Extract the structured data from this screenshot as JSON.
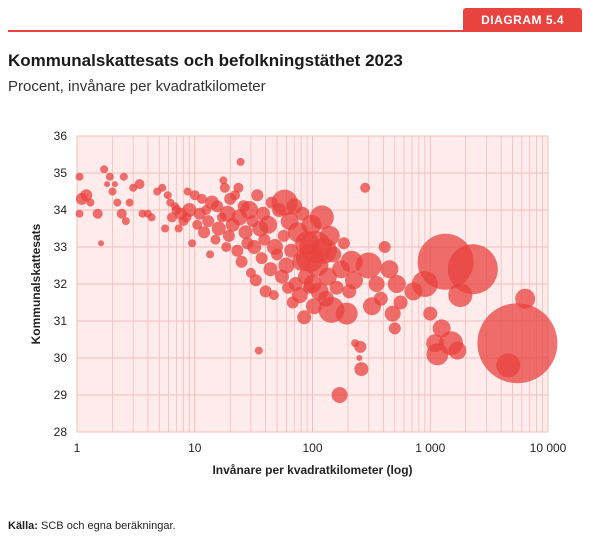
{
  "header": {
    "badge": "DIAGRAM 5.4"
  },
  "title": "Kommunalskattesats och befolkningstäthet 2023",
  "subtitle": "Procent, invånare per kvadratkilometer",
  "source": {
    "label": "Källa:",
    "text": "SCB och egna beräkningar."
  },
  "colors": {
    "accent": "#e8433f",
    "bubble": "#e8433f",
    "plot_bg": "#fdeceb",
    "grid": "#f4bcb9"
  },
  "chart_data": {
    "type": "scatter",
    "xlabel": "Invånare per kvadratkilometer (log)",
    "ylabel": "Kommunalskattesats",
    "x_scale": "log",
    "xlim": [
      1,
      10000
    ],
    "ylim": [
      28,
      36
    ],
    "x_ticks": [
      1,
      10,
      100,
      1000,
      10000
    ],
    "x_tick_labels": [
      "1",
      "10",
      "100",
      "1 000",
      "10 000"
    ],
    "y_ticks": [
      28,
      29,
      30,
      31,
      32,
      33,
      34,
      35,
      36
    ],
    "y_tick_labels": [
      "28",
      "29",
      "30",
      "31",
      "32",
      "33",
      "34",
      "35",
      "36"
    ],
    "grid": true,
    "points": [
      {
        "x": 1.05,
        "y": 34.9,
        "s": 4
      },
      {
        "x": 1.1,
        "y": 34.3,
        "s": 6
      },
      {
        "x": 1.2,
        "y": 34.4,
        "s": 6
      },
      {
        "x": 1.05,
        "y": 33.9,
        "s": 4
      },
      {
        "x": 1.3,
        "y": 34.2,
        "s": 4
      },
      {
        "x": 1.5,
        "y": 33.9,
        "s": 5
      },
      {
        "x": 1.6,
        "y": 33.1,
        "s": 3
      },
      {
        "x": 1.7,
        "y": 35.1,
        "s": 4
      },
      {
        "x": 1.8,
        "y": 34.7,
        "s": 3
      },
      {
        "x": 1.9,
        "y": 34.9,
        "s": 4
      },
      {
        "x": 2.0,
        "y": 34.5,
        "s": 4
      },
      {
        "x": 2.1,
        "y": 34.7,
        "s": 3
      },
      {
        "x": 2.2,
        "y": 34.2,
        "s": 4
      },
      {
        "x": 2.4,
        "y": 33.9,
        "s": 5
      },
      {
        "x": 2.5,
        "y": 34.9,
        "s": 4
      },
      {
        "x": 2.6,
        "y": 33.7,
        "s": 4
      },
      {
        "x": 2.8,
        "y": 34.2,
        "s": 4
      },
      {
        "x": 3.0,
        "y": 34.6,
        "s": 4
      },
      {
        "x": 3.4,
        "y": 34.7,
        "s": 5
      },
      {
        "x": 3.6,
        "y": 33.9,
        "s": 4
      },
      {
        "x": 4.0,
        "y": 33.9,
        "s": 4
      },
      {
        "x": 4.3,
        "y": 33.8,
        "s": 4
      },
      {
        "x": 4.8,
        "y": 34.5,
        "s": 4
      },
      {
        "x": 5.3,
        "y": 34.6,
        "s": 4
      },
      {
        "x": 5.6,
        "y": 33.5,
        "s": 4
      },
      {
        "x": 5.9,
        "y": 34.4,
        "s": 4
      },
      {
        "x": 6.2,
        "y": 34.2,
        "s": 4
      },
      {
        "x": 6.4,
        "y": 33.8,
        "s": 5
      },
      {
        "x": 6.8,
        "y": 34.1,
        "s": 4
      },
      {
        "x": 7.0,
        "y": 34.0,
        "s": 5
      },
      {
        "x": 7.3,
        "y": 33.5,
        "s": 4
      },
      {
        "x": 7.6,
        "y": 33.9,
        "s": 6
      },
      {
        "x": 8.0,
        "y": 33.7,
        "s": 5
      },
      {
        "x": 8.5,
        "y": 33.8,
        "s": 5
      },
      {
        "x": 8.7,
        "y": 34.5,
        "s": 4
      },
      {
        "x": 9.0,
        "y": 34.0,
        "s": 7
      },
      {
        "x": 9.5,
        "y": 33.1,
        "s": 4
      },
      {
        "x": 10.0,
        "y": 34.4,
        "s": 5
      },
      {
        "x": 10.5,
        "y": 33.6,
        "s": 5
      },
      {
        "x": 11.0,
        "y": 33.9,
        "s": 6
      },
      {
        "x": 11.5,
        "y": 34.3,
        "s": 5
      },
      {
        "x": 12.0,
        "y": 33.4,
        "s": 6
      },
      {
        "x": 12.5,
        "y": 34.0,
        "s": 5
      },
      {
        "x": 13.0,
        "y": 33.7,
        "s": 6
      },
      {
        "x": 13.5,
        "y": 32.8,
        "s": 4
      },
      {
        "x": 14.0,
        "y": 34.2,
        "s": 7
      },
      {
        "x": 15.0,
        "y": 33.2,
        "s": 5
      },
      {
        "x": 15.5,
        "y": 34.1,
        "s": 6
      },
      {
        "x": 16.0,
        "y": 33.5,
        "s": 7
      },
      {
        "x": 17.0,
        "y": 33.8,
        "s": 5
      },
      {
        "x": 17.5,
        "y": 34.8,
        "s": 4
      },
      {
        "x": 18.0,
        "y": 34.6,
        "s": 5
      },
      {
        "x": 18.5,
        "y": 33.0,
        "s": 5
      },
      {
        "x": 19.0,
        "y": 33.9,
        "s": 8
      },
      {
        "x": 19.5,
        "y": 33.3,
        "s": 6
      },
      {
        "x": 20.0,
        "y": 34.3,
        "s": 6
      },
      {
        "x": 21.0,
        "y": 33.6,
        "s": 7
      },
      {
        "x": 22.0,
        "y": 34.4,
        "s": 5
      },
      {
        "x": 23.0,
        "y": 32.9,
        "s": 6
      },
      {
        "x": 23.5,
        "y": 34.6,
        "s": 5
      },
      {
        "x": 24.0,
        "y": 33.8,
        "s": 8
      },
      {
        "x": 24.5,
        "y": 35.3,
        "s": 4
      },
      {
        "x": 25.0,
        "y": 32.6,
        "s": 6
      },
      {
        "x": 26.0,
        "y": 34.1,
        "s": 6
      },
      {
        "x": 27.0,
        "y": 33.4,
        "s": 7
      },
      {
        "x": 28.0,
        "y": 33.1,
        "s": 6
      },
      {
        "x": 29.0,
        "y": 34.0,
        "s": 9
      },
      {
        "x": 30.0,
        "y": 32.3,
        "s": 5
      },
      {
        "x": 31.0,
        "y": 33.7,
        "s": 6
      },
      {
        "x": 32.0,
        "y": 33.0,
        "s": 7
      },
      {
        "x": 33.0,
        "y": 32.1,
        "s": 6
      },
      {
        "x": 34.0,
        "y": 34.4,
        "s": 6
      },
      {
        "x": 35.0,
        "y": 30.2,
        "s": 4
      },
      {
        "x": 36.0,
        "y": 33.5,
        "s": 8
      },
      {
        "x": 37.0,
        "y": 32.7,
        "s": 6
      },
      {
        "x": 38.0,
        "y": 33.9,
        "s": 7
      },
      {
        "x": 39.0,
        "y": 33.2,
        "s": 6
      },
      {
        "x": 40.0,
        "y": 31.8,
        "s": 6
      },
      {
        "x": 42.0,
        "y": 33.6,
        "s": 9
      },
      {
        "x": 44.0,
        "y": 32.4,
        "s": 7
      },
      {
        "x": 45.0,
        "y": 34.2,
        "s": 6
      },
      {
        "x": 47.0,
        "y": 31.7,
        "s": 5
      },
      {
        "x": 48.0,
        "y": 33.0,
        "s": 8
      },
      {
        "x": 50.0,
        "y": 32.8,
        "s": 6
      },
      {
        "x": 52.0,
        "y": 34.0,
        "s": 7
      },
      {
        "x": 55.0,
        "y": 32.2,
        "s": 7
      },
      {
        "x": 57.0,
        "y": 33.3,
        "s": 6
      },
      {
        "x": 58.0,
        "y": 34.2,
        "s": 13
      },
      {
        "x": 60.0,
        "y": 32.5,
        "s": 8
      },
      {
        "x": 62.0,
        "y": 31.9,
        "s": 6
      },
      {
        "x": 64.0,
        "y": 33.7,
        "s": 9
      },
      {
        "x": 66.0,
        "y": 32.9,
        "s": 7
      },
      {
        "x": 68.0,
        "y": 31.5,
        "s": 6
      },
      {
        "x": 70.0,
        "y": 34.1,
        "s": 8
      },
      {
        "x": 72.0,
        "y": 32.0,
        "s": 7
      },
      {
        "x": 75.0,
        "y": 33.4,
        "s": 10
      },
      {
        "x": 78.0,
        "y": 31.7,
        "s": 8
      },
      {
        "x": 80.0,
        "y": 32.6,
        "s": 9
      },
      {
        "x": 82.0,
        "y": 33.9,
        "s": 7
      },
      {
        "x": 85.0,
        "y": 31.1,
        "s": 7
      },
      {
        "x": 88.0,
        "y": 32.2,
        "s": 8
      },
      {
        "x": 90.0,
        "y": 33.1,
        "s": 12
      },
      {
        "x": 93.0,
        "y": 31.9,
        "s": 6
      },
      {
        "x": 95.0,
        "y": 32.7,
        "s": 14
      },
      {
        "x": 98.0,
        "y": 33.6,
        "s": 10
      },
      {
        "x": 100.0,
        "y": 32.0,
        "s": 9
      },
      {
        "x": 103.0,
        "y": 31.4,
        "s": 8
      },
      {
        "x": 106.0,
        "y": 33.0,
        "s": 16
      },
      {
        "x": 110.0,
        "y": 32.5,
        "s": 11
      },
      {
        "x": 115.0,
        "y": 31.8,
        "s": 9
      },
      {
        "x": 120.0,
        "y": 33.8,
        "s": 12
      },
      {
        "x": 125.0,
        "y": 32.9,
        "s": 13
      },
      {
        "x": 130.0,
        "y": 31.6,
        "s": 8
      },
      {
        "x": 135.0,
        "y": 32.2,
        "s": 9
      },
      {
        "x": 140.0,
        "y": 33.3,
        "s": 10
      },
      {
        "x": 145.0,
        "y": 31.3,
        "s": 13
      },
      {
        "x": 150.0,
        "y": 32.8,
        "s": 8
      },
      {
        "x": 160.0,
        "y": 31.9,
        "s": 7
      },
      {
        "x": 170.0,
        "y": 29.0,
        "s": 8
      },
      {
        "x": 175.0,
        "y": 32.4,
        "s": 9
      },
      {
        "x": 185.0,
        "y": 33.1,
        "s": 6
      },
      {
        "x": 195.0,
        "y": 31.2,
        "s": 11
      },
      {
        "x": 205.0,
        "y": 31.8,
        "s": 7
      },
      {
        "x": 215.0,
        "y": 32.6,
        "s": 11
      },
      {
        "x": 225.0,
        "y": 32.1,
        "s": 9
      },
      {
        "x": 230.0,
        "y": 30.4,
        "s": 4
      },
      {
        "x": 250.0,
        "y": 30.0,
        "s": 3
      },
      {
        "x": 255.0,
        "y": 30.3,
        "s": 6
      },
      {
        "x": 260.0,
        "y": 29.7,
        "s": 7
      },
      {
        "x": 280.0,
        "y": 34.6,
        "s": 5
      },
      {
        "x": 300.0,
        "y": 32.5,
        "s": 13
      },
      {
        "x": 320.0,
        "y": 31.4,
        "s": 9
      },
      {
        "x": 350.0,
        "y": 32.0,
        "s": 8
      },
      {
        "x": 380.0,
        "y": 31.6,
        "s": 7
      },
      {
        "x": 410.0,
        "y": 33.0,
        "s": 6
      },
      {
        "x": 450.0,
        "y": 32.4,
        "s": 9
      },
      {
        "x": 480.0,
        "y": 31.2,
        "s": 8
      },
      {
        "x": 500.0,
        "y": 30.8,
        "s": 6
      },
      {
        "x": 520.0,
        "y": 32.0,
        "s": 9
      },
      {
        "x": 560.0,
        "y": 31.5,
        "s": 7
      },
      {
        "x": 720.0,
        "y": 31.8,
        "s": 9
      },
      {
        "x": 900.0,
        "y": 32.0,
        "s": 13
      },
      {
        "x": 1000.0,
        "y": 31.2,
        "s": 7
      },
      {
        "x": 1100.0,
        "y": 30.4,
        "s": 9
      },
      {
        "x": 1150.0,
        "y": 30.1,
        "s": 11
      },
      {
        "x": 1250.0,
        "y": 30.8,
        "s": 9
      },
      {
        "x": 1350.0,
        "y": 32.6,
        "s": 28
      },
      {
        "x": 1500.0,
        "y": 30.4,
        "s": 12
      },
      {
        "x": 1700.0,
        "y": 30.2,
        "s": 9
      },
      {
        "x": 1800.0,
        "y": 31.7,
        "s": 12
      },
      {
        "x": 2300.0,
        "y": 32.4,
        "s": 25
      },
      {
        "x": 4600.0,
        "y": 29.8,
        "s": 12
      },
      {
        "x": 5500.0,
        "y": 30.4,
        "s": 40
      },
      {
        "x": 6400.0,
        "y": 31.6,
        "s": 10
      }
    ]
  }
}
